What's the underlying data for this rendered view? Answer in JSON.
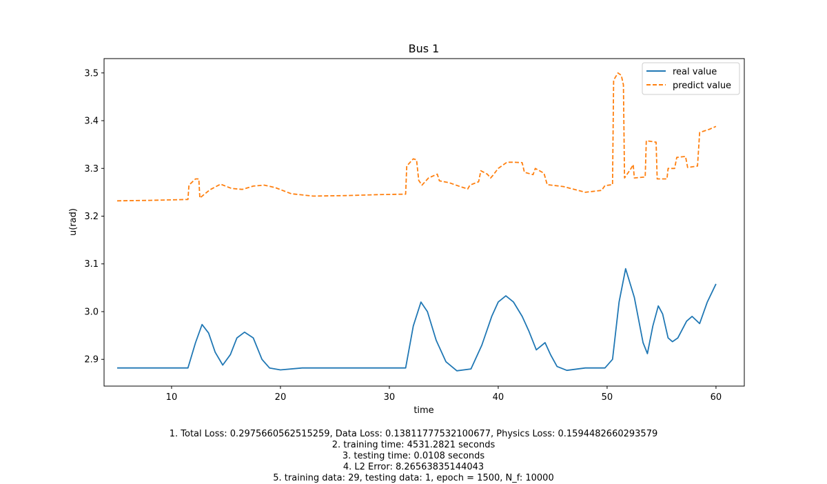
{
  "chart_data": {
    "type": "line",
    "title": "Bus 1",
    "xlabel": "time",
    "ylabel": "u(rad)",
    "xlim": [
      3.8,
      62.6
    ],
    "ylim": [
      2.844,
      3.53
    ],
    "xticks": [
      10,
      20,
      30,
      40,
      50,
      60
    ],
    "yticks": [
      2.9,
      3.0,
      3.1,
      3.2,
      3.3,
      3.4,
      3.5
    ],
    "xtick_labels": [
      "10",
      "20",
      "30",
      "40",
      "50",
      "60"
    ],
    "ytick_labels": [
      "2.9",
      "3.0",
      "3.1",
      "3.2",
      "3.3",
      "3.4",
      "3.5"
    ],
    "grid": false,
    "legend_position": "top-right",
    "series": [
      {
        "name": "real value",
        "color": "#1f77b4",
        "style": "solid",
        "x": [
          5,
          8,
          11.5,
          12.2,
          12.8,
          13.4,
          14,
          14.7,
          15.4,
          16,
          16.7,
          17.5,
          18.3,
          19,
          20,
          22,
          25,
          28,
          31.5,
          32.2,
          32.9,
          33.5,
          34.3,
          35.2,
          36.2,
          37.5,
          38.5,
          39.4,
          40,
          40.7,
          41.4,
          42.2,
          42.8,
          43.5,
          44.3,
          44.8,
          45.4,
          46.3,
          48,
          49.8,
          50.5,
          51.1,
          51.7,
          52.5,
          53.3,
          53.7,
          54.2,
          54.7,
          55.1,
          55.6,
          56,
          56.5,
          57.3,
          57.8,
          58.5,
          59.2,
          60
        ],
        "y": [
          2.882,
          2.882,
          2.882,
          2.935,
          2.973,
          2.955,
          2.915,
          2.888,
          2.91,
          2.945,
          2.957,
          2.945,
          2.9,
          2.882,
          2.878,
          2.882,
          2.882,
          2.882,
          2.882,
          2.97,
          3.02,
          3.0,
          2.94,
          2.895,
          2.876,
          2.88,
          2.93,
          2.99,
          3.02,
          3.033,
          3.02,
          2.99,
          2.96,
          2.92,
          2.935,
          2.91,
          2.885,
          2.877,
          2.882,
          2.882,
          2.9,
          3.02,
          3.09,
          3.03,
          2.935,
          2.912,
          2.97,
          3.012,
          2.995,
          2.945,
          2.937,
          2.945,
          2.98,
          2.99,
          2.975,
          3.02,
          3.058
        ]
      },
      {
        "name": "predict value",
        "color": "#ff7f0e",
        "style": "dashed",
        "x": [
          5,
          8,
          11.5,
          11.6,
          12.2,
          12.5,
          12.6,
          13.5,
          14.5,
          15.5,
          16.5,
          17.5,
          18.5,
          19.5,
          21,
          23,
          26,
          29,
          31.5,
          31.6,
          32.2,
          32.5,
          32.7,
          33,
          33.6,
          34.4,
          34.6,
          35.5,
          36.5,
          37.2,
          37.4,
          38.2,
          38.4,
          39,
          39.3,
          39.5,
          40,
          40.8,
          41.4,
          42.2,
          42.4,
          43.2,
          43.4,
          44.2,
          44.5,
          46,
          48,
          49.5,
          49.8,
          50.5,
          50.6,
          51,
          51.3,
          51.5,
          51.6,
          52.2,
          52.4,
          52.5,
          53.5,
          53.6,
          54.5,
          54.6,
          55.5,
          55.6,
          56.2,
          56.4,
          57.2,
          57.4,
          58.3,
          58.5,
          58.6,
          59.4,
          60
        ],
        "y": [
          3.232,
          3.233,
          3.235,
          3.265,
          3.278,
          3.278,
          3.238,
          3.255,
          3.267,
          3.258,
          3.256,
          3.263,
          3.265,
          3.26,
          3.247,
          3.242,
          3.243,
          3.245,
          3.246,
          3.305,
          3.32,
          3.318,
          3.275,
          3.265,
          3.28,
          3.288,
          3.274,
          3.27,
          3.262,
          3.257,
          3.265,
          3.272,
          3.295,
          3.288,
          3.28,
          3.285,
          3.3,
          3.313,
          3.313,
          3.312,
          3.292,
          3.287,
          3.3,
          3.29,
          3.266,
          3.262,
          3.25,
          3.254,
          3.264,
          3.266,
          3.485,
          3.5,
          3.495,
          3.475,
          3.28,
          3.3,
          3.308,
          3.28,
          3.282,
          3.358,
          3.355,
          3.278,
          3.278,
          3.3,
          3.3,
          3.323,
          3.325,
          3.302,
          3.305,
          3.375,
          3.376,
          3.382,
          3.388
        ]
      }
    ]
  },
  "caption": {
    "line1": "1. Total Loss: 0.2975660562515259, Data Loss: 0.13811777532100677, Physics Loss: 0.1594482660293579",
    "line2": "2. training time: 4531.2821 seconds",
    "line3": "3. testing time: 0.0108 seconds",
    "line4": "4. L2 Error: 8.26563835144043",
    "line5": "5. training data: 29, testing data: 1, epoch = 1500, N_f: 10000"
  }
}
